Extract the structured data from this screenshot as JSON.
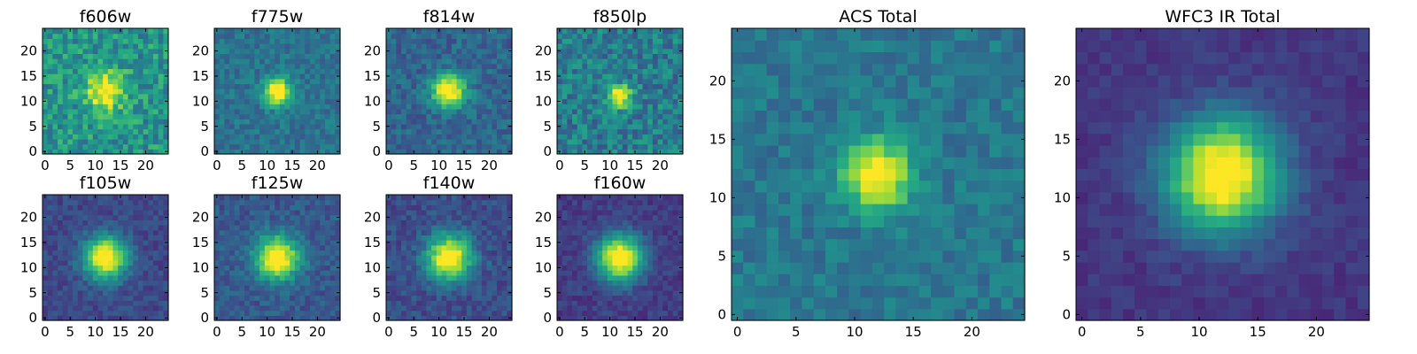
{
  "chart_data": [
    {
      "type": "heatmap",
      "title": "f606w",
      "colormap": "viridis",
      "image_size": [
        25,
        25
      ],
      "center": [
        12,
        12
      ],
      "core_width": 2.6,
      "background": 0.52,
      "noise": 0.17,
      "xticks": [
        0,
        5,
        10,
        15,
        20
      ],
      "yticks": [
        0,
        5,
        10,
        15,
        20
      ],
      "xlim": [
        -0.5,
        24.5
      ],
      "ylim": [
        -0.5,
        24.5
      ]
    },
    {
      "type": "heatmap",
      "title": "f775w",
      "colormap": "viridis",
      "image_size": [
        25,
        25
      ],
      "center": [
        12,
        12
      ],
      "core_width": 1.9,
      "background": 0.38,
      "noise": 0.1,
      "xticks": [
        0,
        5,
        10,
        15,
        20
      ],
      "yticks": [
        0,
        5,
        10,
        15,
        20
      ],
      "xlim": [
        -0.5,
        24.5
      ],
      "ylim": [
        -0.5,
        24.5
      ]
    },
    {
      "type": "heatmap",
      "title": "f814w",
      "colormap": "viridis",
      "image_size": [
        25,
        25
      ],
      "center": [
        12,
        12
      ],
      "core_width": 2.3,
      "background": 0.33,
      "noise": 0.11,
      "xticks": [
        0,
        5,
        10,
        15,
        20
      ],
      "yticks": [
        0,
        5,
        10,
        15,
        20
      ],
      "xlim": [
        -0.5,
        24.5
      ],
      "ylim": [
        -0.5,
        24.5
      ]
    },
    {
      "type": "heatmap",
      "title": "f850lp",
      "colormap": "viridis",
      "image_size": [
        25,
        25
      ],
      "center": [
        12,
        11
      ],
      "core_width": 1.6,
      "background": 0.42,
      "noise": 0.16,
      "xticks": [
        0,
        5,
        10,
        15,
        20
      ],
      "yticks": [
        0,
        5,
        10,
        15,
        20
      ],
      "xlim": [
        -0.5,
        24.5
      ],
      "ylim": [
        -0.5,
        24.5
      ]
    },
    {
      "type": "heatmap",
      "title": "f105w",
      "colormap": "viridis",
      "image_size": [
        25,
        25
      ],
      "center": [
        12,
        12
      ],
      "core_width": 3.0,
      "background": 0.22,
      "noise": 0.08,
      "xticks": [
        0,
        5,
        10,
        15,
        20
      ],
      "yticks": [
        0,
        5,
        10,
        15,
        20
      ],
      "xlim": [
        -0.5,
        24.5
      ],
      "ylim": [
        -0.5,
        24.5
      ]
    },
    {
      "type": "heatmap",
      "title": "f125w",
      "colormap": "viridis",
      "image_size": [
        25,
        25
      ],
      "center": [
        12,
        12
      ],
      "core_width": 3.0,
      "background": 0.28,
      "noise": 0.09,
      "xticks": [
        0,
        5,
        10,
        15,
        20
      ],
      "yticks": [
        0,
        5,
        10,
        15,
        20
      ],
      "xlim": [
        -0.5,
        24.5
      ],
      "ylim": [
        -0.5,
        24.5
      ]
    },
    {
      "type": "heatmap",
      "title": "f140w",
      "colormap": "viridis",
      "image_size": [
        25,
        25
      ],
      "center": [
        12,
        12
      ],
      "core_width": 3.1,
      "background": 0.24,
      "noise": 0.09,
      "xticks": [
        0,
        5,
        10,
        15,
        20
      ],
      "yticks": [
        0,
        5,
        10,
        15,
        20
      ],
      "xlim": [
        -0.5,
        24.5
      ],
      "ylim": [
        -0.5,
        24.5
      ]
    },
    {
      "type": "heatmap",
      "title": "f160w",
      "colormap": "viridis",
      "image_size": [
        25,
        25
      ],
      "center": [
        12,
        12
      ],
      "core_width": 3.2,
      "background": 0.18,
      "noise": 0.07,
      "xticks": [
        0,
        5,
        10,
        15,
        20
      ],
      "yticks": [
        0,
        5,
        10,
        15,
        20
      ],
      "xlim": [
        -0.5,
        24.5
      ],
      "ylim": [
        -0.5,
        24.5
      ]
    },
    {
      "type": "heatmap",
      "title": "ACS Total",
      "colormap": "viridis",
      "image_size": [
        25,
        25
      ],
      "center": [
        12,
        12
      ],
      "core_width": 2.0,
      "background": 0.4,
      "noise": 0.09,
      "xticks": [
        0,
        5,
        10,
        15,
        20
      ],
      "yticks": [
        0,
        5,
        10,
        15,
        20
      ],
      "xlim": [
        -0.5,
        24.5
      ],
      "ylim": [
        -0.5,
        24.5
      ]
    },
    {
      "type": "heatmap",
      "title": "WFC3 IR Total",
      "colormap": "viridis",
      "image_size": [
        25,
        25
      ],
      "center": [
        12,
        12
      ],
      "core_width": 3.4,
      "background": 0.16,
      "noise": 0.05,
      "xticks": [
        0,
        5,
        10,
        15,
        20
      ],
      "yticks": [
        0,
        5,
        10,
        15,
        20
      ],
      "xlim": [
        -0.5,
        24.5
      ],
      "ylim": [
        -0.5,
        24.5
      ]
    }
  ]
}
